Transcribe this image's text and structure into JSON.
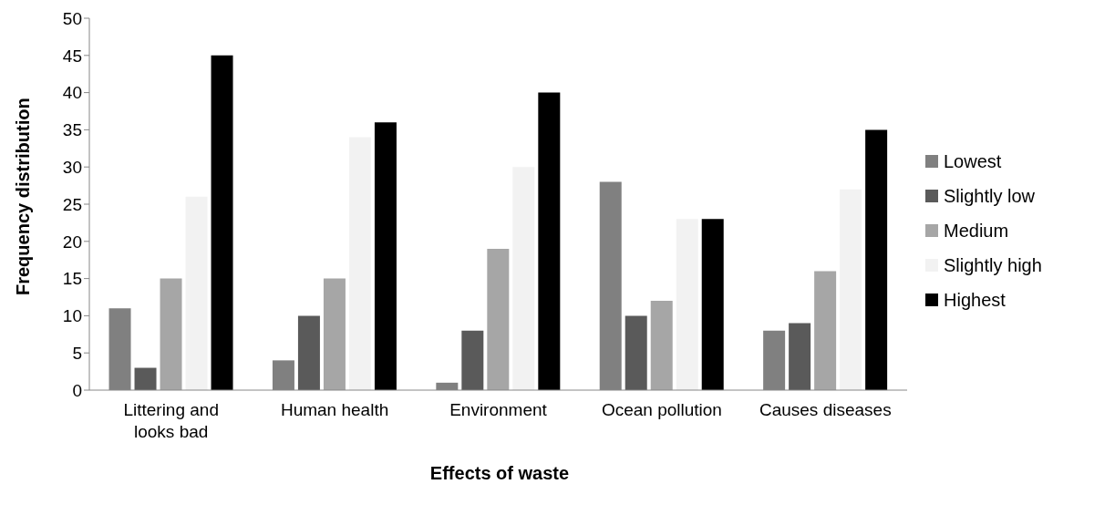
{
  "chart_data": {
    "type": "bar",
    "xlabel": "Effects of waste",
    "ylabel": "Frequency distribution",
    "categories": [
      "Littering and looks bad",
      "Human health",
      "Environment",
      "Ocean pollution",
      "Causes diseases"
    ],
    "series": [
      {
        "name": "Lowest",
        "color": "#808080",
        "values": [
          11,
          4,
          1,
          28,
          8
        ]
      },
      {
        "name": "Slightly low",
        "color": "#5a5a5a",
        "values": [
          3,
          10,
          8,
          10,
          9
        ]
      },
      {
        "name": "Medium",
        "color": "#a6a6a6",
        "values": [
          15,
          15,
          19,
          12,
          16
        ]
      },
      {
        "name": "Slightly high",
        "color": "#f2f2f2",
        "values": [
          26,
          34,
          30,
          23,
          27
        ]
      },
      {
        "name": "Highest",
        "color": "#000000",
        "values": [
          45,
          36,
          40,
          23,
          35
        ]
      }
    ],
    "ylim": [
      0,
      50
    ],
    "yticks": [
      0,
      5,
      10,
      15,
      20,
      25,
      30,
      35,
      40,
      45,
      50
    ],
    "grid": false,
    "legend": "right"
  }
}
